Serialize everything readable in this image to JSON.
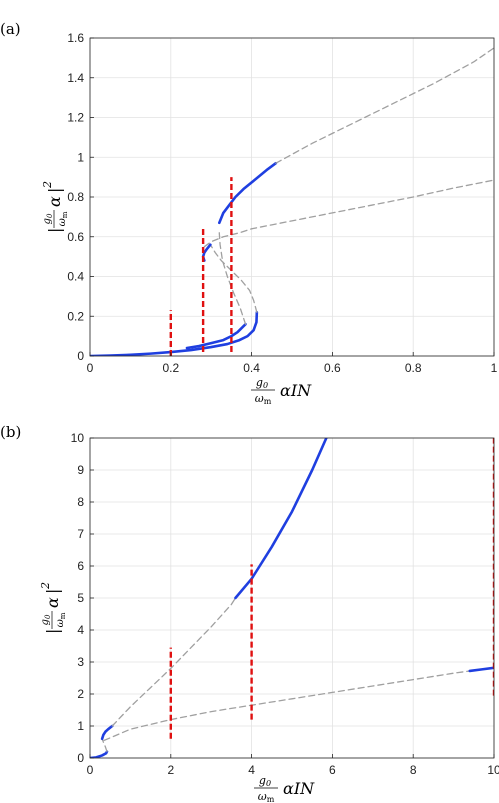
{
  "chart_data": [
    {
      "type": "line",
      "panel_label": "(a)",
      "xlabel": "g0/ωm αIN",
      "ylabel": "|g0/ωm α|²",
      "xlim": [
        0,
        1
      ],
      "ylim": [
        0,
        1.6
      ],
      "xticks": [
        0,
        0.2,
        0.4,
        0.6,
        0.8,
        1
      ],
      "xtick_labels": [
        "0",
        "0.2",
        "0.4",
        "0.6",
        "0.8",
        "1"
      ],
      "yticks": [
        0,
        0.2,
        0.4,
        0.6,
        0.8,
        1,
        1.2,
        1.4,
        1.6
      ],
      "ytick_labels": [
        "0",
        "0.2",
        "0.4",
        "0.6",
        "0.8",
        "1",
        "1.2",
        "1.4",
        "1.6"
      ],
      "grid": true,
      "series": [
        {
          "style": "stable",
          "color": "#1f3fe0",
          "x": [
            0,
            0.05,
            0.1,
            0.15,
            0.2,
            0.25,
            0.3,
            0.34,
            0.37,
            0.39,
            0.405,
            0.412,
            0.413
          ],
          "y": [
            0,
            0.002,
            0.006,
            0.012,
            0.02,
            0.03,
            0.045,
            0.06,
            0.08,
            0.1,
            0.13,
            0.17,
            0.22
          ]
        },
        {
          "style": "unstable",
          "color": "#a0a0a0",
          "x": [
            0.413,
            0.405,
            0.395,
            0.375,
            0.35,
            0.325,
            0.31,
            0.298
          ],
          "y": [
            0.22,
            0.28,
            0.33,
            0.38,
            0.43,
            0.48,
            0.52,
            0.56
          ]
        },
        {
          "style": "stable",
          "color": "#1f3fe0",
          "x": [
            0.298,
            0.29,
            0.283,
            0.28,
            0.283
          ],
          "y": [
            0.56,
            0.54,
            0.52,
            0.5,
            0.48
          ]
        },
        {
          "style": "unstable",
          "color": "#a0a0a0",
          "x": [
            0.283,
            0.3,
            0.33,
            0.37,
            0.4,
            0.45,
            0.5,
            0.6,
            0.7,
            0.8,
            0.9,
            1.0
          ],
          "y": [
            0.55,
            0.575,
            0.6,
            0.62,
            0.64,
            0.66,
            0.68,
            0.72,
            0.76,
            0.8,
            0.845,
            0.885
          ]
        },
        {
          "style": "stable",
          "color": "#1f3fe0",
          "x": [
            0.24,
            0.27,
            0.3,
            0.33,
            0.35,
            0.365,
            0.375,
            0.385
          ],
          "y": [
            0.04,
            0.05,
            0.065,
            0.08,
            0.1,
            0.12,
            0.14,
            0.16
          ]
        },
        {
          "style": "unstable",
          "color": "#a0a0a0",
          "x": [
            0.385,
            0.372,
            0.355,
            0.34,
            0.328,
            0.322,
            0.32
          ],
          "y": [
            0.16,
            0.24,
            0.32,
            0.4,
            0.48,
            0.56,
            0.62
          ]
        },
        {
          "style": "stable",
          "color": "#1f3fe0",
          "x": [
            0.32,
            0.33,
            0.345,
            0.36,
            0.38,
            0.41,
            0.44,
            0.46
          ],
          "y": [
            0.67,
            0.72,
            0.76,
            0.8,
            0.84,
            0.89,
            0.94,
            0.97
          ]
        },
        {
          "style": "unstable",
          "color": "#a0a0a0",
          "x": [
            0.46,
            0.55,
            0.65,
            0.75,
            0.85,
            0.95,
            1.0
          ],
          "y": [
            0.97,
            1.07,
            1.17,
            1.27,
            1.37,
            1.48,
            1.55
          ]
        }
      ],
      "vlines": [
        {
          "x": 0.2,
          "y0": 0.0,
          "y1": 0.23
        },
        {
          "x": 0.28,
          "y0": 0.02,
          "y1": 0.65
        },
        {
          "x": 0.35,
          "y0": 0.02,
          "y1": 0.9
        }
      ]
    },
    {
      "type": "line",
      "panel_label": "(b)",
      "xlabel": "g0/ωm αIN",
      "ylabel": "|g0/ωm α|²",
      "xlim": [
        0,
        10
      ],
      "ylim": [
        0,
        10
      ],
      "xticks": [
        0,
        2,
        4,
        6,
        8,
        10
      ],
      "xtick_labels": [
        "0",
        "2",
        "4",
        "6",
        "8",
        "10"
      ],
      "yticks": [
        0,
        1,
        2,
        3,
        4,
        5,
        6,
        7,
        8,
        9,
        10
      ],
      "ytick_labels": [
        "0",
        "1",
        "2",
        "3",
        "4",
        "5",
        "6",
        "7",
        "8",
        "9",
        "10"
      ],
      "grid": true,
      "series": [
        {
          "style": "stable",
          "color": "#1f3fe0",
          "x": [
            0,
            0.15,
            0.3,
            0.4,
            0.42
          ],
          "y": [
            0,
            0.02,
            0.08,
            0.15,
            0.2
          ]
        },
        {
          "style": "unstable",
          "color": "#a0a0a0",
          "x": [
            0.42,
            0.38,
            0.33,
            0.3
          ],
          "y": [
            0.2,
            0.35,
            0.5,
            0.6
          ]
        },
        {
          "style": "stable",
          "color": "#1f3fe0",
          "x": [
            0.3,
            0.33,
            0.38,
            0.45,
            0.55
          ],
          "y": [
            0.6,
            0.72,
            0.82,
            0.9,
            1.0
          ]
        },
        {
          "style": "unstable",
          "color": "#a0a0a0",
          "x": [
            0.55,
            1.0,
            1.5,
            2.0,
            2.5,
            3.0,
            3.5,
            3.6
          ],
          "y": [
            1.0,
            1.6,
            2.2,
            2.8,
            3.45,
            4.1,
            4.8,
            5.0
          ]
        },
        {
          "style": "stable",
          "color": "#1f3fe0",
          "x": [
            3.6,
            4.0,
            4.5,
            5.0,
            5.5,
            5.85
          ],
          "y": [
            5.0,
            5.6,
            6.6,
            7.7,
            9.0,
            10.0
          ]
        },
        {
          "style": "unstable",
          "color": "#a0a0a0",
          "x": [
            0.35,
            1.0,
            2.0,
            3.0,
            4.0,
            5.0,
            6.0,
            7.0,
            8.0,
            9.0,
            9.4
          ],
          "y": [
            0.55,
            0.9,
            1.2,
            1.45,
            1.65,
            1.85,
            2.05,
            2.25,
            2.45,
            2.65,
            2.72
          ]
        },
        {
          "style": "stable",
          "color": "#1f3fe0",
          "x": [
            9.4,
            9.7,
            10.0
          ],
          "y": [
            2.72,
            2.77,
            2.82
          ]
        }
      ],
      "vlines": [
        {
          "x": 2,
          "y0": 0.6,
          "y1": 3.45
        },
        {
          "x": 4,
          "y0": 1.2,
          "y1": 6.05
        },
        {
          "x": 10,
          "y0": 1.95,
          "y1": 10.0
        }
      ]
    }
  ]
}
